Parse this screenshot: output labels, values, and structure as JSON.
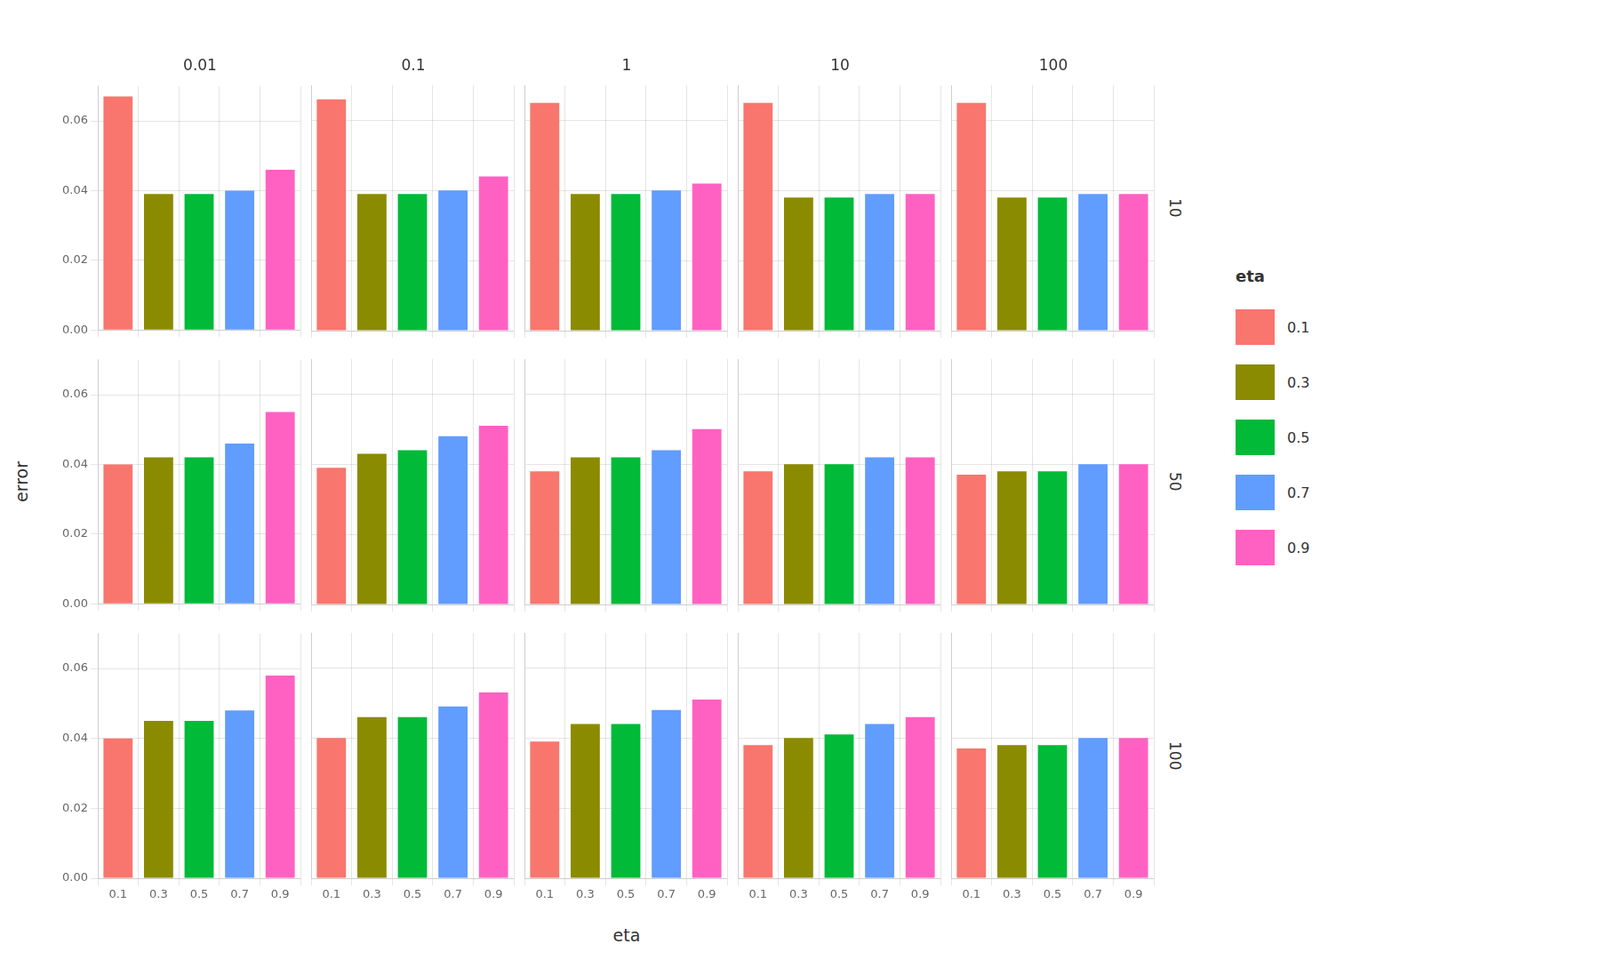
{
  "chart_data": {
    "type": "bar",
    "xlabel": "eta",
    "ylabel": "error",
    "legend_title": "eta",
    "legend": "right",
    "grid": true,
    "categories": [
      "0.1",
      "0.3",
      "0.5",
      "0.7",
      "0.9"
    ],
    "colors": [
      "#F8766D",
      "#8B8B00",
      "#00BA38",
      "#619CFF",
      "#FF61C3"
    ],
    "column_labels": [
      "0.01",
      "0.1",
      "1",
      "10",
      "100"
    ],
    "row_labels": [
      "10",
      "50",
      "100"
    ],
    "values": [
      [
        [
          0.067,
          0.039,
          0.039,
          0.04,
          0.046
        ],
        [
          0.066,
          0.039,
          0.039,
          0.04,
          0.044
        ],
        [
          0.065,
          0.039,
          0.039,
          0.04,
          0.042
        ],
        [
          0.065,
          0.038,
          0.038,
          0.039,
          0.039
        ],
        [
          0.065,
          0.038,
          0.038,
          0.039,
          0.039
        ]
      ],
      [
        [
          0.04,
          0.042,
          0.042,
          0.046,
          0.055
        ],
        [
          0.039,
          0.043,
          0.044,
          0.048,
          0.051
        ],
        [
          0.038,
          0.042,
          0.042,
          0.044,
          0.05
        ],
        [
          0.038,
          0.04,
          0.04,
          0.042,
          0.042
        ],
        [
          0.037,
          0.038,
          0.038,
          0.04,
          0.04
        ]
      ],
      [
        [
          0.04,
          0.045,
          0.045,
          0.048,
          0.058
        ],
        [
          0.04,
          0.046,
          0.046,
          0.049,
          0.053
        ],
        [
          0.039,
          0.044,
          0.044,
          0.048,
          0.051
        ],
        [
          0.038,
          0.04,
          0.041,
          0.044,
          0.046
        ],
        [
          0.037,
          0.038,
          0.038,
          0.04,
          0.04
        ]
      ]
    ],
    "ylim": [
      0.0,
      0.07
    ],
    "yticks": [
      {
        "value": 0,
        "label": "0.00"
      },
      0.02,
      0.04,
      0.06
    ]
  }
}
